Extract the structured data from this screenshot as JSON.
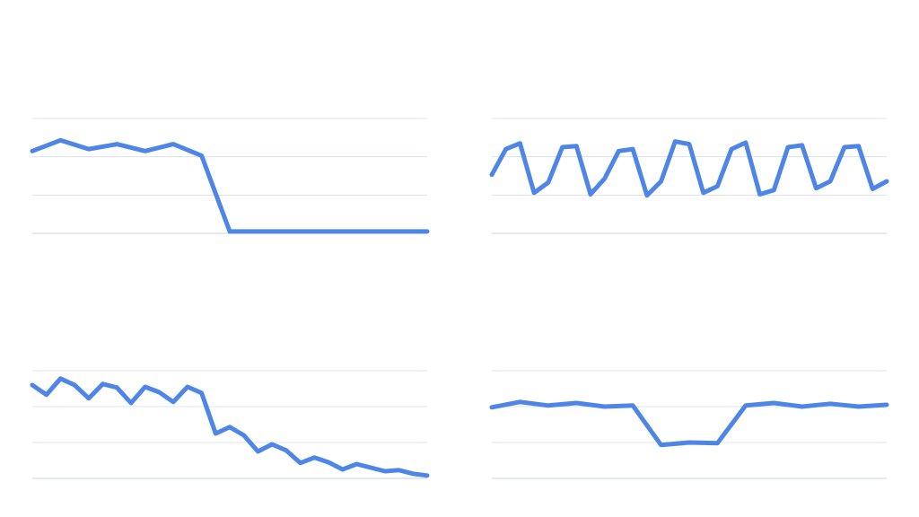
{
  "colors": {
    "line": "#4f86e6",
    "grid": "#dde3ec",
    "baseline": "#c9d3e0",
    "background": "#ffffff"
  },
  "chart_data": [
    {
      "type": "line",
      "grid": true,
      "ylim": [
        0,
        3
      ],
      "x": [
        0,
        1,
        2,
        3,
        4,
        5,
        6,
        7,
        8,
        9,
        10,
        11,
        12,
        13,
        14
      ],
      "values": [
        2.15,
        2.43,
        2.2,
        2.33,
        2.15,
        2.33,
        2.03,
        0.05,
        0.05,
        0.05,
        0.05,
        0.05,
        0.05,
        0.05,
        0.05
      ]
    },
    {
      "type": "line",
      "grid": true,
      "ylim": [
        0,
        3
      ],
      "x": [
        0,
        1,
        2,
        3,
        4,
        5,
        6,
        7,
        8,
        9,
        10,
        11,
        12,
        13,
        14,
        15,
        16,
        17,
        18,
        19,
        20,
        21,
        22,
        23,
        24,
        25,
        26,
        27,
        28
      ],
      "values": [
        1.53,
        2.2,
        2.35,
        1.06,
        1.33,
        2.25,
        2.28,
        1.02,
        1.43,
        2.15,
        2.2,
        0.99,
        1.36,
        2.4,
        2.33,
        1.06,
        1.23,
        2.2,
        2.37,
        1.02,
        1.13,
        2.25,
        2.3,
        1.18,
        1.36,
        2.25,
        2.28,
        1.16,
        1.36
      ]
    },
    {
      "type": "line",
      "grid": true,
      "ylim": [
        0,
        3
      ],
      "x": [
        0,
        1,
        2,
        3,
        4,
        5,
        6,
        7,
        8,
        9,
        10,
        11,
        12,
        13,
        14,
        15,
        16,
        17,
        18,
        19,
        20,
        21,
        22,
        23,
        24,
        25,
        26,
        27,
        28
      ],
      "values": [
        2.6,
        2.33,
        2.78,
        2.6,
        2.23,
        2.63,
        2.53,
        2.1,
        2.55,
        2.4,
        2.13,
        2.55,
        2.38,
        1.25,
        1.43,
        1.2,
        0.75,
        0.95,
        0.78,
        0.43,
        0.58,
        0.45,
        0.25,
        0.4,
        0.3,
        0.2,
        0.23,
        0.13,
        0.08
      ]
    },
    {
      "type": "line",
      "grid": true,
      "ylim": [
        0,
        3
      ],
      "x": [
        0,
        1,
        2,
        3,
        4,
        5,
        6,
        7,
        8,
        9,
        10,
        11,
        12,
        13,
        14
      ],
      "values": [
        1.98,
        2.13,
        2.03,
        2.1,
        2.0,
        2.03,
        0.93,
        1.0,
        0.98,
        2.03,
        2.1,
        2.0,
        2.08,
        2.0,
        2.05
      ]
    }
  ]
}
